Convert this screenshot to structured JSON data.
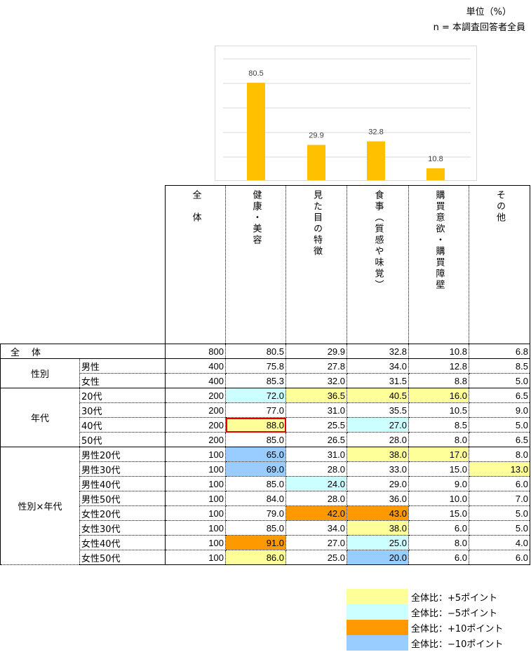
{
  "header": {
    "unit": "単位（%）",
    "n_label": "n = 本調査回答者全員"
  },
  "colors": {
    "bar": "#ffc000",
    "plus5": "#ffff99",
    "minus5": "#ccffff",
    "plus10": "#ff9900",
    "minus10": "#99ccff",
    "redbox": "#e00000"
  },
  "chart_data": {
    "type": "bar",
    "categories": [
      "健康・美容",
      "見た目の特徴",
      "食事（質感や味覚）",
      "購買意欲・購買障壁"
    ],
    "values": [
      80.5,
      29.9,
      32.8,
      10.8
    ],
    "value_labels": [
      "80.5",
      "29.9",
      "32.8",
      "10.8"
    ],
    "ylim": [
      0,
      100
    ],
    "gridlines": [
      20,
      40,
      60,
      80,
      100
    ],
    "grid": true
  },
  "table": {
    "columns": [
      "全　体",
      "健康・美容",
      "見た目の特徴",
      "食事（質感や味覚）",
      "購買意欲・購買障壁",
      "その他"
    ],
    "groups": [
      {
        "label": "全　体",
        "rows": [
          {
            "label": "",
            "n": "800",
            "values": [
              "80.5",
              "29.9",
              "32.8",
              "10.8",
              "6.8"
            ],
            "hl": [
              "",
              "",
              "",
              "",
              ""
            ]
          }
        ]
      },
      {
        "label": "性別",
        "rows": [
          {
            "label": "男性",
            "n": "400",
            "values": [
              "75.8",
              "27.8",
              "34.0",
              "12.8",
              "8.5"
            ],
            "hl": [
              "",
              "",
              "",
              "",
              ""
            ]
          },
          {
            "label": "女性",
            "n": "400",
            "values": [
              "85.3",
              "32.0",
              "31.5",
              "8.8",
              "5.0"
            ],
            "hl": [
              "",
              "",
              "",
              "",
              ""
            ]
          }
        ]
      },
      {
        "label": "年代",
        "rows": [
          {
            "label": "20代",
            "n": "200",
            "values": [
              "72.0",
              "36.5",
              "40.5",
              "16.0",
              "6.5"
            ],
            "hl": [
              "minus5",
              "plus5",
              "plus5",
              "plus5",
              ""
            ]
          },
          {
            "label": "30代",
            "n": "200",
            "values": [
              "77.0",
              "31.0",
              "35.5",
              "10.5",
              "9.0"
            ],
            "hl": [
              "",
              "",
              "",
              "",
              ""
            ]
          },
          {
            "label": "40代",
            "n": "200",
            "values": [
              "88.0",
              "25.5",
              "27.0",
              "8.5",
              "5.0"
            ],
            "hl": [
              "plus5*",
              "",
              "minus5",
              "",
              ""
            ]
          },
          {
            "label": "50代",
            "n": "200",
            "values": [
              "85.0",
              "26.5",
              "28.0",
              "8.0",
              "6.5"
            ],
            "hl": [
              "",
              "",
              "",
              "",
              ""
            ]
          }
        ]
      },
      {
        "label": "性別×年代",
        "rows": [
          {
            "label": "男性20代",
            "n": "100",
            "values": [
              "65.0",
              "31.0",
              "38.0",
              "17.0",
              "8.0"
            ],
            "hl": [
              "minus10",
              "",
              "plus5",
              "plus5",
              ""
            ]
          },
          {
            "label": "男性30代",
            "n": "100",
            "values": [
              "69.0",
              "28.0",
              "33.0",
              "15.0",
              "13.0"
            ],
            "hl": [
              "minus10",
              "",
              "",
              "",
              "plus5"
            ]
          },
          {
            "label": "男性40代",
            "n": "100",
            "values": [
              "85.0",
              "24.0",
              "29.0",
              "9.0",
              "6.0"
            ],
            "hl": [
              "",
              "minus5",
              "",
              "",
              ""
            ]
          },
          {
            "label": "男性50代",
            "n": "100",
            "values": [
              "84.0",
              "28.0",
              "36.0",
              "10.0",
              "7.0"
            ],
            "hl": [
              "",
              "",
              "",
              "",
              ""
            ]
          },
          {
            "label": "女性20代",
            "n": "100",
            "values": [
              "79.0",
              "42.0",
              "43.0",
              "15.0",
              "5.0"
            ],
            "hl": [
              "",
              "plus10",
              "plus10",
              "",
              ""
            ]
          },
          {
            "label": "女性30代",
            "n": "100",
            "values": [
              "85.0",
              "34.0",
              "38.0",
              "6.0",
              "5.0"
            ],
            "hl": [
              "",
              "",
              "plus5",
              "",
              ""
            ]
          },
          {
            "label": "女性40代",
            "n": "100",
            "values": [
              "91.0",
              "27.0",
              "25.0",
              "8.0",
              "4.0"
            ],
            "hl": [
              "plus10",
              "",
              "minus5",
              "",
              ""
            ]
          },
          {
            "label": "女性50代",
            "n": "100",
            "values": [
              "86.0",
              "25.0",
              "20.0",
              "6.0",
              "6.0"
            ],
            "hl": [
              "plus5",
              "",
              "minus10",
              "",
              ""
            ]
          }
        ]
      }
    ]
  },
  "legend": [
    {
      "key": "plus5",
      "label": "全体比：+5ポイント"
    },
    {
      "key": "minus5",
      "label": "全体比：−5ポイント"
    },
    {
      "key": "plus10",
      "label": "全体比：+10ポイント"
    },
    {
      "key": "minus10",
      "label": "全体比：−10ポイント"
    }
  ]
}
